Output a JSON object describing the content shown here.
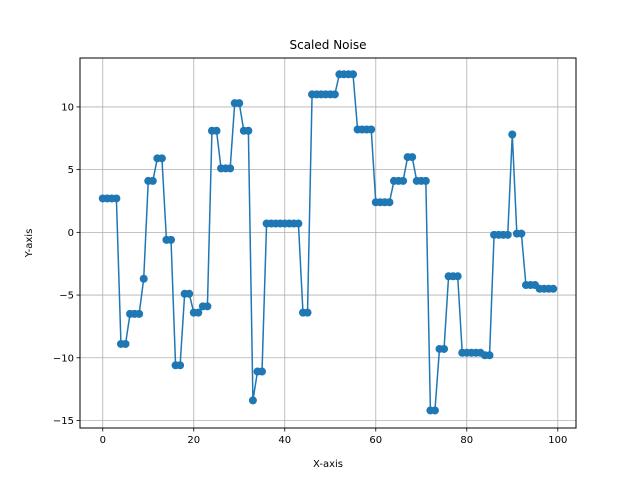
{
  "chart_data": {
    "type": "line",
    "title": "Scaled Noise",
    "xlabel": "X-axis",
    "ylabel": "Y-axis",
    "xlim": [
      -5,
      104
    ],
    "ylim": [
      -15.6,
      13.9
    ],
    "xticks": [
      0,
      20,
      40,
      60,
      80,
      100
    ],
    "yticks": [
      -15,
      -10,
      -5,
      0,
      5,
      10
    ],
    "grid": true,
    "color": "#1f77b4",
    "marker": "circle",
    "x": [
      0,
      1,
      2,
      3,
      4,
      5,
      6,
      7,
      8,
      9,
      10,
      11,
      12,
      13,
      14,
      15,
      16,
      17,
      18,
      19,
      20,
      21,
      22,
      23,
      24,
      25,
      26,
      27,
      28,
      29,
      30,
      31,
      32,
      33,
      34,
      35,
      36,
      37,
      38,
      39,
      40,
      41,
      42,
      43,
      44,
      45,
      46,
      47,
      48,
      49,
      50,
      51,
      52,
      53,
      54,
      55,
      56,
      57,
      58,
      59,
      60,
      61,
      62,
      63,
      64,
      65,
      66,
      67,
      68,
      69,
      70,
      71,
      72,
      73,
      74,
      75,
      76,
      77,
      78,
      79,
      80,
      81,
      82,
      83,
      84,
      85,
      86,
      87,
      88,
      89,
      90,
      91,
      92,
      93,
      94,
      95,
      96,
      97,
      98,
      99
    ],
    "y": [
      2.7,
      2.7,
      2.7,
      2.7,
      -8.9,
      -8.9,
      -6.5,
      -6.5,
      -6.5,
      -3.7,
      4.1,
      4.1,
      5.9,
      5.9,
      -0.6,
      -0.6,
      -10.6,
      -10.6,
      -4.9,
      -4.9,
      -6.4,
      -6.4,
      -5.9,
      -5.9,
      8.1,
      8.1,
      5.1,
      5.1,
      5.1,
      10.3,
      10.3,
      8.1,
      8.1,
      -13.4,
      -11.1,
      -11.1,
      0.7,
      0.7,
      0.7,
      0.7,
      0.7,
      0.7,
      0.7,
      0.7,
      -6.4,
      -6.4,
      11.0,
      11.0,
      11.0,
      11.0,
      11.0,
      11.0,
      12.6,
      12.6,
      12.6,
      12.6,
      8.2,
      8.2,
      8.2,
      8.2,
      2.4,
      2.4,
      2.4,
      2.4,
      4.1,
      4.1,
      4.1,
      6.0,
      6.0,
      4.1,
      4.1,
      4.1,
      -14.2,
      -14.2,
      -9.3,
      -9.3,
      -3.5,
      -3.5,
      -3.5,
      -9.6,
      -9.6,
      -9.6,
      -9.6,
      -9.6,
      -9.8,
      -9.8,
      -0.2,
      -0.2,
      -0.2,
      -0.2,
      7.8,
      -0.1,
      -0.1,
      -4.2,
      -4.2,
      -4.2,
      -4.5,
      -4.5,
      -4.5,
      -4.5
    ]
  }
}
